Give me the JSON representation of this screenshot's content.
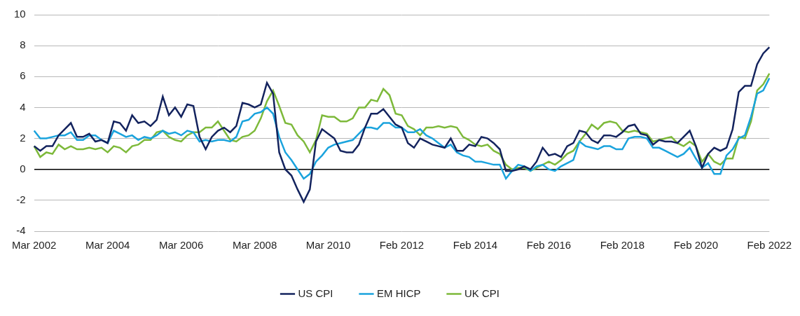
{
  "chart_data": {
    "type": "line",
    "categories": [
      "Mar 2002",
      null,
      null,
      null,
      null,
      null,
      null,
      null,
      null,
      null,
      null,
      null,
      "Mar 2004",
      null,
      null,
      null,
      null,
      null,
      null,
      null,
      null,
      null,
      null,
      null,
      "Mar 2006",
      null,
      null,
      null,
      null,
      null,
      null,
      null,
      null,
      null,
      null,
      null,
      "Mar 2008",
      null,
      null,
      null,
      null,
      null,
      null,
      null,
      null,
      null,
      null,
      null,
      "Mar 2010",
      null,
      null,
      null,
      null,
      null,
      null,
      null,
      null,
      null,
      null,
      null,
      "Feb 2012",
      null,
      null,
      null,
      null,
      null,
      null,
      null,
      null,
      null,
      null,
      null,
      "Feb 2014",
      null,
      null,
      null,
      null,
      null,
      null,
      null,
      null,
      null,
      null,
      null,
      "Feb 2016",
      null,
      null,
      null,
      null,
      null,
      null,
      null,
      null,
      null,
      null,
      null,
      "Feb 2018",
      null,
      null,
      null,
      null,
      null,
      null,
      null,
      null,
      null,
      null,
      null,
      "Feb 2020",
      null,
      null,
      null,
      null,
      null,
      null,
      null,
      null,
      null,
      null,
      null,
      "Feb 2022"
    ],
    "series": [
      {
        "name": "US CPI",
        "color": "#13235e",
        "values": [
          1.5,
          1.2,
          1.5,
          1.5,
          2.2,
          2.6,
          3.0,
          2.1,
          2.1,
          2.3,
          1.8,
          1.9,
          1.7,
          3.1,
          3.0,
          2.5,
          3.5,
          3.0,
          3.1,
          2.8,
          3.2,
          4.7,
          3.5,
          4.0,
          3.4,
          4.2,
          4.1,
          2.1,
          1.3,
          2.1,
          2.5,
          2.7,
          2.4,
          2.8,
          4.3,
          4.2,
          4.0,
          4.2,
          5.6,
          4.9,
          1.1,
          0.0,
          -0.4,
          -1.3,
          -2.1,
          -1.3,
          1.8,
          2.6,
          2.3,
          2.0,
          1.2,
          1.1,
          1.1,
          1.6,
          2.7,
          3.6,
          3.6,
          3.9,
          3.4,
          2.9,
          2.7,
          1.7,
          1.4,
          2.0,
          1.8,
          1.6,
          1.5,
          1.4,
          2.0,
          1.2,
          1.2,
          1.6,
          1.5,
          2.1,
          2.0,
          1.7,
          1.3,
          -0.1,
          -0.1,
          0.0,
          0.2,
          0.0,
          0.5,
          1.4,
          0.9,
          1.0,
          0.8,
          1.5,
          1.7,
          2.5,
          2.4,
          1.9,
          1.7,
          2.2,
          2.2,
          2.1,
          2.4,
          2.8,
          2.9,
          2.3,
          2.2,
          1.6,
          1.9,
          1.8,
          1.8,
          1.7,
          2.1,
          2.5,
          1.5,
          0.1,
          1.0,
          1.4,
          1.2,
          1.4,
          2.6,
          5.0,
          5.4,
          5.4,
          6.8,
          7.5,
          7.9
        ]
      },
      {
        "name": "EM HICP",
        "color": "#1aa3dd",
        "values": [
          2.5,
          2.0,
          2.0,
          2.1,
          2.2,
          2.2,
          2.4,
          1.9,
          1.9,
          2.2,
          2.2,
          1.9,
          1.7,
          2.5,
          2.3,
          2.1,
          2.2,
          1.9,
          2.1,
          2.0,
          2.2,
          2.5,
          2.3,
          2.4,
          2.2,
          2.5,
          2.4,
          1.8,
          1.9,
          1.8,
          1.9,
          1.9,
          1.8,
          2.1,
          3.1,
          3.2,
          3.6,
          3.7,
          4.0,
          3.6,
          2.1,
          1.1,
          0.6,
          0.0,
          -0.6,
          -0.3,
          0.5,
          0.9,
          1.4,
          1.6,
          1.7,
          1.8,
          1.9,
          2.3,
          2.7,
          2.7,
          2.6,
          3.0,
          3.0,
          2.7,
          2.7,
          2.4,
          2.4,
          2.6,
          2.2,
          2.0,
          1.7,
          1.4,
          1.6,
          1.1,
          0.9,
          0.8,
          0.5,
          0.5,
          0.4,
          0.3,
          0.3,
          -0.6,
          -0.1,
          0.3,
          0.2,
          -0.1,
          0.2,
          0.3,
          0.0,
          -0.1,
          0.2,
          0.4,
          0.6,
          1.8,
          1.5,
          1.4,
          1.3,
          1.5,
          1.5,
          1.3,
          1.3,
          2.0,
          2.1,
          2.1,
          2.0,
          1.4,
          1.4,
          1.2,
          1.0,
          0.8,
          1.0,
          1.4,
          0.7,
          0.1,
          0.4,
          -0.3,
          -0.3,
          0.9,
          1.3,
          2.0,
          2.2,
          3.4,
          4.9,
          5.1,
          5.9
        ]
      },
      {
        "name": "UK CPI",
        "color": "#7db93a",
        "values": [
          1.5,
          0.8,
          1.1,
          1.0,
          1.6,
          1.3,
          1.5,
          1.3,
          1.3,
          1.4,
          1.3,
          1.4,
          1.1,
          1.5,
          1.4,
          1.1,
          1.5,
          1.6,
          1.9,
          1.9,
          2.4,
          2.5,
          2.1,
          1.9,
          1.8,
          2.2,
          2.4,
          2.4,
          2.7,
          2.7,
          3.1,
          2.5,
          1.9,
          1.8,
          2.1,
          2.2,
          2.5,
          3.3,
          4.4,
          5.1,
          4.1,
          3.0,
          2.9,
          2.2,
          1.8,
          1.1,
          1.9,
          3.5,
          3.4,
          3.4,
          3.1,
          3.1,
          3.3,
          4.0,
          4.0,
          4.5,
          4.4,
          5.2,
          4.8,
          3.6,
          3.5,
          2.8,
          2.6,
          2.2,
          2.7,
          2.7,
          2.8,
          2.7,
          2.8,
          2.7,
          2.1,
          1.9,
          1.6,
          1.5,
          1.6,
          1.2,
          1.0,
          0.3,
          0.0,
          0.1,
          0.1,
          -0.1,
          0.1,
          0.3,
          0.5,
          0.3,
          0.6,
          1.0,
          1.2,
          1.8,
          2.3,
          2.9,
          2.6,
          3.0,
          3.1,
          3.0,
          2.5,
          2.4,
          2.5,
          2.4,
          2.3,
          1.8,
          1.9,
          2.0,
          2.1,
          1.7,
          1.5,
          1.8,
          1.5,
          0.5,
          1.0,
          0.5,
          0.3,
          0.7,
          0.7,
          2.1,
          2.0,
          3.1,
          5.1,
          5.5,
          6.2
        ]
      }
    ],
    "ylim": [
      -4,
      10
    ],
    "yticks": [
      -4,
      -2,
      0,
      2,
      4,
      6,
      8,
      10
    ],
    "grid": true,
    "legend": "bottom"
  }
}
